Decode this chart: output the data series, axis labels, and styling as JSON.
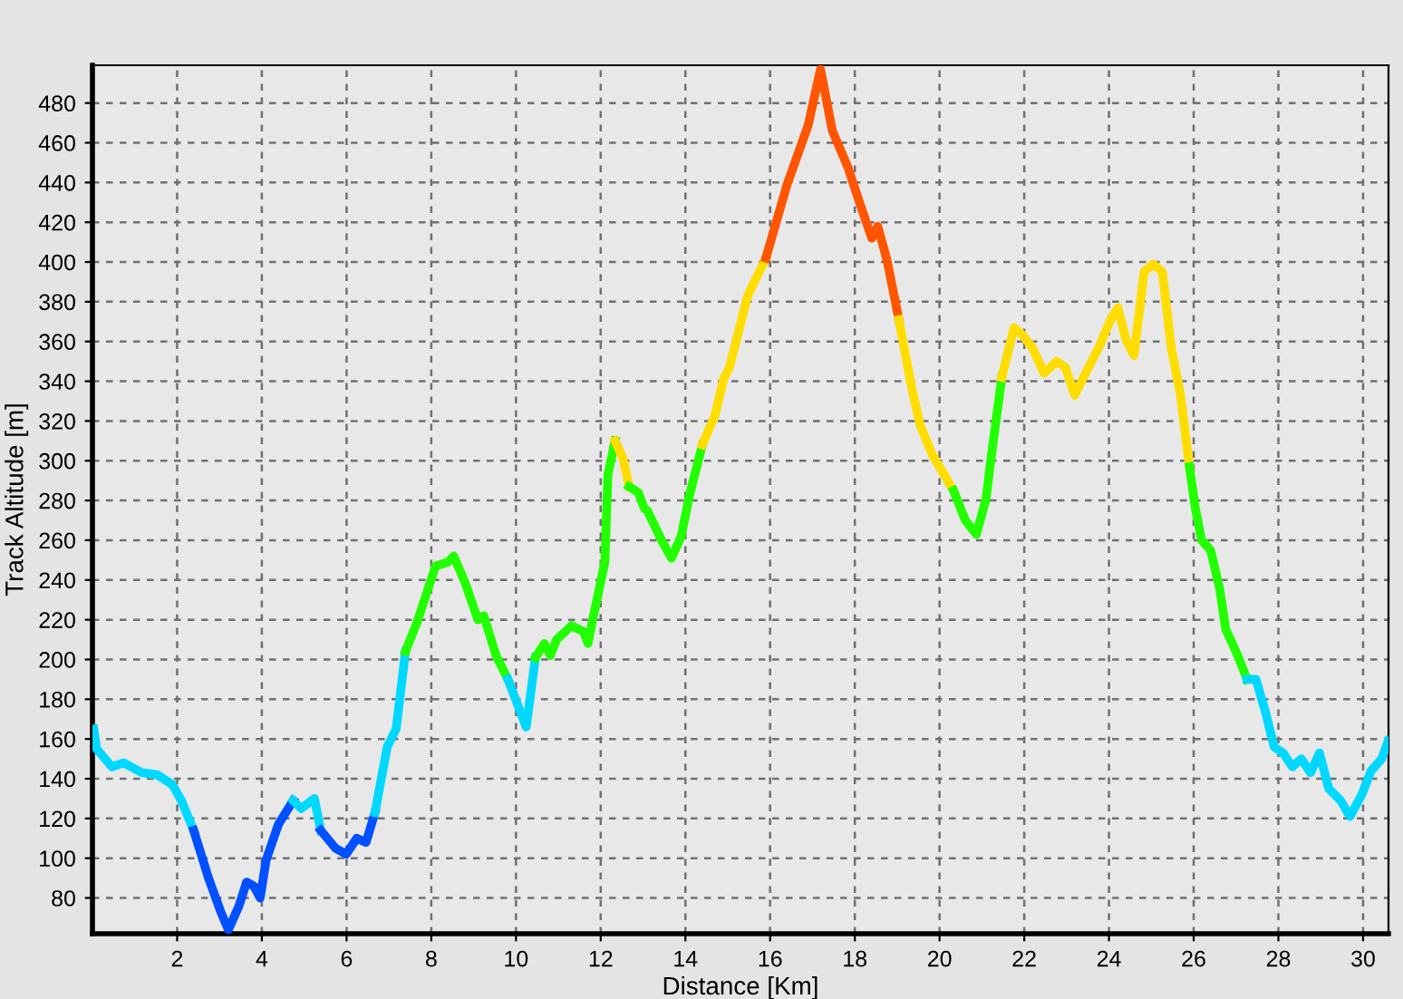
{
  "chart_data": {
    "type": "line",
    "xlabel": "Distance [Km]",
    "ylabel": "Track Altitude [m]",
    "xlim": [
      0,
      30.6
    ],
    "ylim": [
      62,
      499
    ],
    "xticks": [
      2,
      4,
      6,
      8,
      10,
      12,
      14,
      16,
      18,
      20,
      22,
      24,
      26,
      28,
      30
    ],
    "yticks": [
      80,
      100,
      120,
      140,
      160,
      180,
      200,
      220,
      240,
      260,
      280,
      300,
      320,
      340,
      360,
      380,
      400,
      420,
      440,
      460,
      480
    ],
    "grid": true,
    "line_style": "solid",
    "marker": "none",
    "series": [
      {
        "color": "#00d8ff",
        "x": [
          0.03,
          0.1,
          0.46,
          0.74,
          1.17,
          1.53,
          1.89,
          2.1,
          2.39
        ],
        "values": [
          165,
          155,
          146,
          148,
          143,
          142,
          137,
          129,
          114
        ]
      },
      {
        "color": "#0050ff",
        "x": [
          2.39,
          2.74,
          3.03,
          3.21,
          3.46,
          3.64,
          3.81,
          3.96,
          4.1,
          4.39,
          4.74
        ],
        "values": [
          114,
          90,
          73,
          64,
          76,
          88,
          86,
          80,
          99,
          117,
          129
        ]
      },
      {
        "color": "#00d8ff",
        "x": [
          4.74,
          4.93,
          5.24,
          5.39
        ],
        "values": [
          129,
          125,
          130,
          114
        ]
      },
      {
        "color": "#0050ff",
        "x": [
          5.39,
          5.74,
          5.99,
          6.24,
          6.46,
          6.67
        ],
        "values": [
          114,
          105,
          102,
          110,
          108,
          123
        ]
      },
      {
        "color": "#00d8ff",
        "x": [
          6.67,
          6.96,
          7.17,
          7.39
        ],
        "values": [
          123,
          156,
          165,
          204
        ]
      },
      {
        "color": "#22ff00",
        "x": [
          7.39,
          7.67,
          8.1,
          8.39,
          8.53,
          8.81,
          9.1,
          9.24,
          9.53,
          9.81
        ],
        "values": [
          204,
          219,
          247,
          249,
          252,
          238,
          220,
          222,
          202,
          190
        ]
      },
      {
        "color": "#00d8ff",
        "x": [
          9.81,
          10.24,
          10.46
        ],
        "values": [
          190,
          166,
          201
        ]
      },
      {
        "color": "#22ff00",
        "x": [
          10.46,
          10.67,
          10.81,
          10.96,
          11.31,
          11.6,
          11.7,
          11.81,
          12.1,
          12.17,
          12.34
        ],
        "values": [
          201,
          208,
          202,
          210,
          217,
          214,
          208,
          220,
          249,
          293,
          310
        ]
      },
      {
        "color": "#ffdd00",
        "x": [
          12.34,
          12.53,
          12.67
        ],
        "values": [
          310,
          301,
          287
        ]
      },
      {
        "color": "#22ff00",
        "x": [
          12.67,
          12.89,
          13.03,
          13.1,
          13.46,
          13.67,
          13.9,
          14.1,
          14.4
        ],
        "values": [
          287,
          284,
          276,
          275,
          259,
          251,
          262,
          283,
          308
        ]
      },
      {
        "color": "#ffdd00",
        "x": [
          14.4,
          14.7,
          14.9,
          15.04,
          15.47,
          15.9
        ],
        "values": [
          308,
          323,
          341,
          347,
          383,
          402
        ]
      },
      {
        "color": "#ff5500",
        "x": [
          15.9,
          16.4,
          16.9,
          17.19,
          17.47,
          17.83,
          18.11,
          18.4,
          18.54,
          18.76,
          19.04
        ],
        "values": [
          402,
          439,
          469,
          497,
          466,
          448,
          430,
          412,
          418,
          401,
          371
        ]
      },
      {
        "color": "#ffdd00",
        "x": [
          19.04,
          19.33,
          19.54,
          19.83,
          20.33
        ],
        "values": [
          371,
          338,
          318,
          303,
          285
        ]
      },
      {
        "color": "#22ff00",
        "x": [
          20.33,
          20.61,
          20.87,
          21.1,
          21.19,
          21.47
        ],
        "values": [
          285,
          270,
          263,
          281,
          297,
          342
        ]
      },
      {
        "color": "#ffdd00",
        "x": [
          21.47,
          21.76,
          21.97,
          22.19,
          22.47,
          22.76,
          22.97,
          23.19,
          23.47,
          23.76,
          24.04,
          24.21,
          24.4,
          24.59,
          24.83,
          25.04,
          25.26,
          25.47,
          25.69,
          25.9
        ],
        "values": [
          342,
          367,
          363,
          357,
          344,
          350,
          347,
          333,
          345,
          357,
          371,
          377,
          361,
          353,
          395,
          399,
          395,
          357,
          333,
          297
        ]
      },
      {
        "color": "#22ff00",
        "x": [
          25.9,
          26.04,
          26.19,
          26.4,
          26.61,
          26.76,
          27.04,
          27.26
        ],
        "values": [
          297,
          276,
          260,
          255,
          236,
          215,
          202,
          190
        ]
      },
      {
        "color": "#00d8ff",
        "x": [
          27.26,
          27.47,
          27.69,
          27.9,
          28.11,
          28.33,
          28.54,
          28.76,
          28.97,
          29.19,
          29.47,
          29.69,
          29.97,
          30.19,
          30.44,
          30.59
        ],
        "values": [
          190,
          190,
          174,
          156,
          153,
          146,
          150,
          143,
          153,
          135,
          129,
          121,
          132,
          144,
          150,
          159
        ]
      }
    ]
  }
}
